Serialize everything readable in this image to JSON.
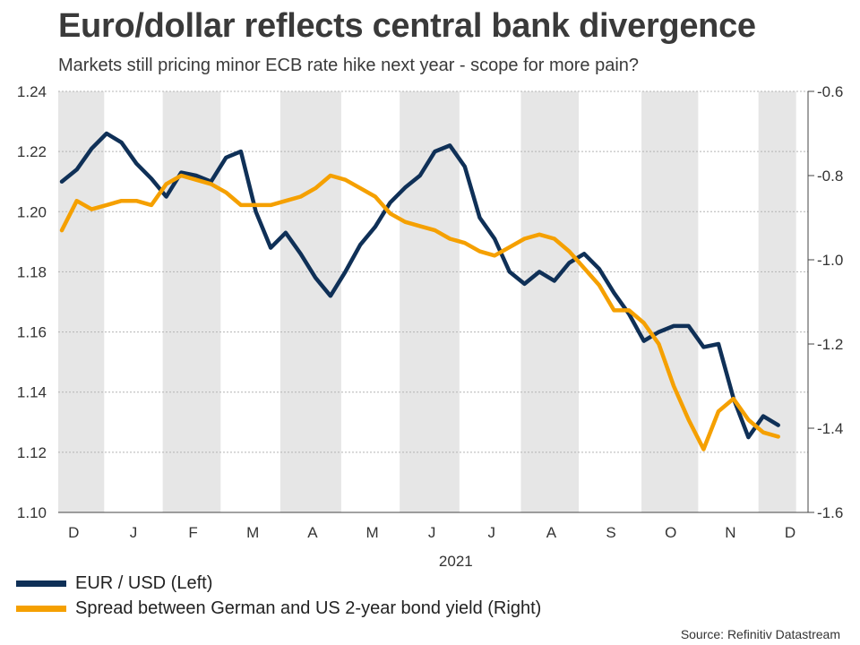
{
  "header": {
    "title": "Euro/dollar reflects central bank divergence",
    "subtitle": "Markets still pricing minor ECB rate hike next year - scope for more pain?"
  },
  "legend": {
    "items": [
      {
        "label": "EUR / USD (Left)",
        "color": "#0f3057"
      },
      {
        "label": "Spread between German and US 2-year bond yield (Right)",
        "color": "#f5a000"
      }
    ]
  },
  "source": "Source: Refinitiv Datastream",
  "colors": {
    "band": "#e6e6e6",
    "grid": "#b4b4b4"
  },
  "chart_data": {
    "type": "line",
    "x": [
      0,
      0.25,
      0.5,
      0.75,
      1,
      1.25,
      1.5,
      1.75,
      2,
      2.25,
      2.5,
      2.75,
      3,
      3.25,
      3.5,
      3.75,
      4,
      4.25,
      4.5,
      4.75,
      5,
      5.25,
      5.5,
      5.75,
      6,
      6.25,
      6.5,
      6.75,
      7,
      7.25,
      7.5,
      7.75,
      8,
      8.25,
      8.5,
      8.75,
      9,
      9.25,
      9.5,
      9.75,
      10,
      10.25,
      10.5,
      10.75,
      11,
      11.25,
      11.5,
      11.75,
      12
    ],
    "x_ticks": [
      {
        "label": "D",
        "x": 0.2
      },
      {
        "label": "J",
        "x": 1.2
      },
      {
        "label": "F",
        "x": 2.2
      },
      {
        "label": "M",
        "x": 3.2
      },
      {
        "label": "A",
        "x": 4.2
      },
      {
        "label": "M",
        "x": 5.2
      },
      {
        "label": "J",
        "x": 6.2
      },
      {
        "label": "J",
        "x": 7.2
      },
      {
        "label": "A",
        "x": 8.2
      },
      {
        "label": "S",
        "x": 9.2
      },
      {
        "label": "O",
        "x": 10.2
      },
      {
        "label": "N",
        "x": 11.2
      },
      {
        "label": "D",
        "x": 12.2
      }
    ],
    "year_label": {
      "label": "2021",
      "x": 6.6
    },
    "shaded_months": [
      [
        -0.06,
        0.71
      ],
      [
        1.69,
        2.66
      ],
      [
        3.66,
        4.68
      ],
      [
        5.66,
        6.66
      ],
      [
        7.69,
        8.66
      ],
      [
        9.71,
        10.66
      ],
      [
        11.67,
        12.3
      ]
    ],
    "x_range": [
      -0.06,
      12.5
    ],
    "left_axis": {
      "min": 1.1,
      "max": 1.24,
      "ticks": [
        "1.10",
        "1.12",
        "1.14",
        "1.16",
        "1.18",
        "1.20",
        "1.22",
        "1.24"
      ]
    },
    "right_axis": {
      "min": -1.6,
      "max": -0.6,
      "ticks": [
        "-0.6",
        "-0.8",
        "-1.0",
        "-1.2",
        "-1.4",
        "-1.6"
      ]
    },
    "series": [
      {
        "name": "EUR / USD (Left)",
        "axis": "left",
        "values": [
          1.21,
          1.214,
          1.221,
          1.226,
          1.223,
          1.216,
          1.211,
          1.205,
          1.213,
          1.212,
          1.21,
          1.218,
          1.22,
          1.2,
          1.188,
          1.193,
          1.186,
          1.178,
          1.172,
          1.18,
          1.189,
          1.195,
          1.203,
          1.208,
          1.212,
          1.22,
          1.222,
          1.215,
          1.198,
          1.191,
          1.18,
          1.176,
          1.18,
          1.177,
          1.183,
          1.186,
          1.181,
          1.173,
          1.166,
          1.157,
          1.16,
          1.162,
          1.162,
          1.155,
          1.156,
          1.138,
          1.125,
          1.132,
          1.129
        ]
      },
      {
        "name": "Spread between German and US 2-year bond yield (Right)",
        "axis": "right",
        "values": [
          -0.93,
          -0.86,
          -0.88,
          -0.87,
          -0.86,
          -0.86,
          -0.87,
          -0.82,
          -0.8,
          -0.81,
          -0.82,
          -0.84,
          -0.87,
          -0.87,
          -0.87,
          -0.86,
          -0.85,
          -0.83,
          -0.8,
          -0.81,
          -0.83,
          -0.85,
          -0.89,
          -0.91,
          -0.92,
          -0.93,
          -0.95,
          -0.96,
          -0.98,
          -0.99,
          -0.97,
          -0.95,
          -0.94,
          -0.95,
          -0.98,
          -1.02,
          -1.06,
          -1.12,
          -1.12,
          -1.15,
          -1.2,
          -1.3,
          -1.38,
          -1.45,
          -1.36,
          -1.33,
          -1.38,
          -1.41,
          -1.42
        ]
      }
    ]
  }
}
